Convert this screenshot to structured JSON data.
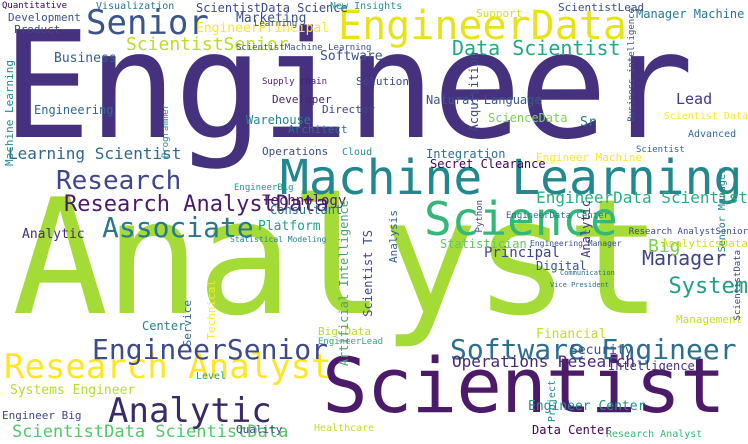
{
  "words": [
    {
      "text": "Engineer",
      "color": "#46317e"
    },
    {
      "text": "Analyst",
      "color": "#a5db36"
    },
    {
      "text": "Scientist",
      "color": "#4b1a69"
    },
    {
      "text": "Machine Learning",
      "color": "#23888e"
    },
    {
      "text": "EngineerData",
      "color": "#e6e419"
    },
    {
      "text": "Senior",
      "color": "#3a548c"
    },
    {
      "text": "Science",
      "color": "#35b779"
    },
    {
      "text": "Research AnalystData",
      "color": "#4b1a69"
    },
    {
      "text": "Research Analyst",
      "color": "#fde725"
    },
    {
      "text": "EngineerSenior",
      "color": "#3e4a89"
    },
    {
      "text": "Software Engineer",
      "color": "#2e6f8e"
    },
    {
      "text": "Analytic",
      "color": "#3a2a6a"
    },
    {
      "text": "Associate",
      "color": "#2a788e"
    },
    {
      "text": "Research",
      "color": "#3f4788"
    },
    {
      "text": "ScientistSenior",
      "color": "#b8de29"
    },
    {
      "text": "Data Scientist",
      "color": "#22a884"
    },
    {
      "text": "ScientistData Science",
      "color": "#3e4a89"
    },
    {
      "text": "Learning Scientist",
      "color": "#31688e"
    },
    {
      "text": "Manager",
      "color": "#414487"
    },
    {
      "text": "EngineerData Scientist",
      "color": "#29af7f"
    },
    {
      "text": "Operations Research",
      "color": "#482878"
    },
    {
      "text": "ScientistData ScientistData",
      "color": "#55c667"
    },
    {
      "text": "Manager Machine",
      "color": "#2a788e"
    },
    {
      "text": "EngineerPrincipal",
      "color": "#fde725"
    },
    {
      "text": "Marketing",
      "color": "#3b528b"
    },
    {
      "text": "Technology",
      "color": "#48186a"
    },
    {
      "text": "System",
      "color": "#1f9e89"
    },
    {
      "text": "Big",
      "color": "#7ad151"
    },
    {
      "text": "Principal",
      "color": "#414487"
    },
    {
      "text": "Platform",
      "color": "#20a386"
    },
    {
      "text": "Consultant",
      "color": "#2c728e"
    },
    {
      "text": "Analytic",
      "color": "#472f7d"
    },
    {
      "text": "Systems Engineer",
      "color": "#b5de2b"
    },
    {
      "text": "Engineer Center",
      "color": "#21918c"
    },
    {
      "text": "Business",
      "color": "#355f8d"
    },
    {
      "text": "Product",
      "color": "#404688"
    },
    {
      "text": "Development",
      "color": "#3b528b"
    },
    {
      "text": "Visualization",
      "color": "#2c728e"
    },
    {
      "text": "Quantitative",
      "color": "#440154"
    },
    {
      "text": "Center",
      "color": "#25858e"
    },
    {
      "text": "Engineering",
      "color": "#31688e"
    },
    {
      "text": "Operations",
      "color": "#3e4c8a"
    },
    {
      "text": "Lead",
      "color": "#443983"
    },
    {
      "text": "Sr",
      "color": "#2a788e"
    },
    {
      "text": "Intelligence",
      "color": "#46327e"
    },
    {
      "text": "Natural Language",
      "color": "#38598c"
    },
    {
      "text": "Warehouse",
      "color": "#26828e"
    },
    {
      "text": "Architect",
      "color": "#2d708e"
    },
    {
      "text": "Developer",
      "color": "#482475"
    },
    {
      "text": "Director",
      "color": "#404588"
    },
    {
      "text": "Solution",
      "color": "#3f4889"
    },
    {
      "text": "ScienceData",
      "color": "#7fd34e"
    },
    {
      "text": "Digital",
      "color": "#39558c"
    },
    {
      "text": "Statistician",
      "color": "#5ec962"
    },
    {
      "text": "Integration",
      "color": "#2d718e"
    },
    {
      "text": "Secret Clearance",
      "color": "#440154"
    },
    {
      "text": "Advanced",
      "color": "#2f6b8e"
    },
    {
      "text": "Financial",
      "color": "#c2df23"
    },
    {
      "text": "Supply chain",
      "color": "#481d6f"
    },
    {
      "text": "Software",
      "color": "#3c4f8a"
    },
    {
      "text": "Security",
      "color": "#3b518b"
    },
    {
      "text": "Management",
      "color": "#c8e020"
    },
    {
      "text": "ScientistLead",
      "color": "#3d4d8a"
    },
    {
      "text": "Support",
      "color": "#d5e21a"
    },
    {
      "text": "New Insights",
      "color": "#1f968b"
    },
    {
      "text": "Research AnalystSenior",
      "color": "#404588"
    },
    {
      "text": "AnalyticsData",
      "color": "#d2e21b"
    },
    {
      "text": "Statistical Modeling",
      "color": "#25848e"
    },
    {
      "text": "Scientist TS",
      "color": "#3e4989"
    },
    {
      "text": "Artificial Intelligence",
      "color": "#4aa36e"
    },
    {
      "text": "Acquisition",
      "color": "#3f4788"
    },
    {
      "text": "Service",
      "color": "#2e6e8e"
    },
    {
      "text": "Business intelligence",
      "color": "#3b528b"
    },
    {
      "text": "EngineerBig",
      "color": "#1e9b8a"
    },
    {
      "text": "EngineerLead",
      "color": "#27ad81"
    },
    {
      "text": "Big Data",
      "color": "#b8de29"
    },
    {
      "text": "Analysis",
      "color": "#355e8d"
    },
    {
      "text": "EngineerData Center",
      "color": "#2c738e"
    },
    {
      "text": "Level",
      "color": "#21a585"
    },
    {
      "text": "Technical",
      "color": "#fde725"
    },
    {
      "text": "Learning",
      "color": "#3d4e8a"
    },
    {
      "text": "Engineer Machine",
      "color": "#fde725"
    },
    {
      "text": "Cloud",
      "color": "#20928c"
    },
    {
      "text": "Communication",
      "color": "#2d708e"
    },
    {
      "text": "Senior Manager",
      "color": "#26818e"
    },
    {
      "text": "Project",
      "color": "#228d8d"
    },
    {
      "text": "Healthcare",
      "color": "#bddf26"
    },
    {
      "text": "Machine Learning",
      "color": "#238a8d"
    },
    {
      "text": "ScientistMachine Learning",
      "color": "#3b528b"
    },
    {
      "text": "Research Analyst",
      "color": "#35b779"
    },
    {
      "text": "Engineer Big",
      "color": "#3f4889"
    },
    {
      "text": "Vice President",
      "color": "#2e6e8e"
    },
    {
      "text": "Python",
      "color": "#414487"
    },
    {
      "text": "Programmer",
      "color": "#21918c"
    },
    {
      "text": "Analytic",
      "color": "#46337f"
    },
    {
      "text": "ScientistData",
      "color": "#3f4788"
    },
    {
      "text": "Quality",
      "color": "#fde725"
    },
    {
      "text": "Scientist Data",
      "color": "#440154"
    },
    {
      "text": "Data Center",
      "color": "#3b528b"
    },
    {
      "text": "Engineering Manager",
      "color": "#31688e"
    },
    {
      "text": "Scientist",
      "color": "#2c728e"
    }
  ]
}
